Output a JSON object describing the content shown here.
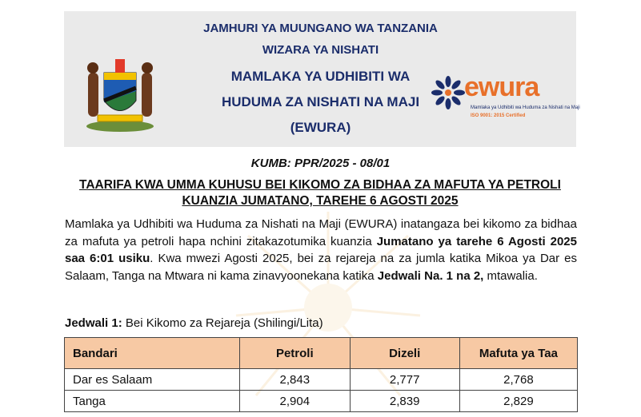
{
  "header": {
    "line1": "JAMHURI YA MUUNGANO WA TANZANIA",
    "line2": "WIZARA YA NISHATI",
    "line3": "MAMLAKA YA UDHIBITI WA",
    "line4": "HUDUMA ZA NISHATI NA MAJI",
    "line5": "(EWURA)"
  },
  "logo": {
    "word": "ewura",
    "tagline": "Mamlaka ya Udhibiti wa Huduma za Nishati na Maji",
    "cert": "ISO 9001: 2015 Certified"
  },
  "reference": "KUMB: PPR/2025 - 08/01",
  "title": "TAARIFA KWA UMMA KUHUSU BEI KIKOMO ZA BIDHAA ZA MAFUTA YA PETROLI KUANZIA JUMATANO, TAREHE 6 AGOSTI 2025",
  "paragraph": {
    "t1": "Mamlaka ya Udhibiti wa Huduma za Nishati na Maji (EWURA) inatangaza bei kikomo za bidhaa za mafuta ya petroli hapa nchini zitakazotumika kuanzia ",
    "b1": "Jumatano ya tarehe 6 Agosti 2025 saa 6:01 usiku",
    "t2": ". Kwa mwezi Agosti 2025, bei za rejareja na za jumla katika Mikoa ya Dar es Salaam, Tanga na Mtwara ni kama zinavyoonekana katika ",
    "b2": "Jedwali Na. 1 na 2,",
    "t3": " mtawalia."
  },
  "table_caption": {
    "label": "Jedwali 1:",
    "text": " Bei Kikomo za Rejareja (Shilingi/Lita)"
  },
  "table": {
    "headers": [
      "Bandari",
      "Petroli",
      "Dizeli",
      "Mafuta ya Taa"
    ],
    "rows": [
      [
        "Dar es Salaam",
        "2,843",
        "2,777",
        "2,768"
      ],
      [
        "Tanga",
        "2,904",
        "2,839",
        "2,829"
      ]
    ]
  },
  "colors": {
    "header_navy": "#1b2d6b",
    "ewura_orange": "#e8702a",
    "table_header_bg": "#f7c9a4"
  }
}
